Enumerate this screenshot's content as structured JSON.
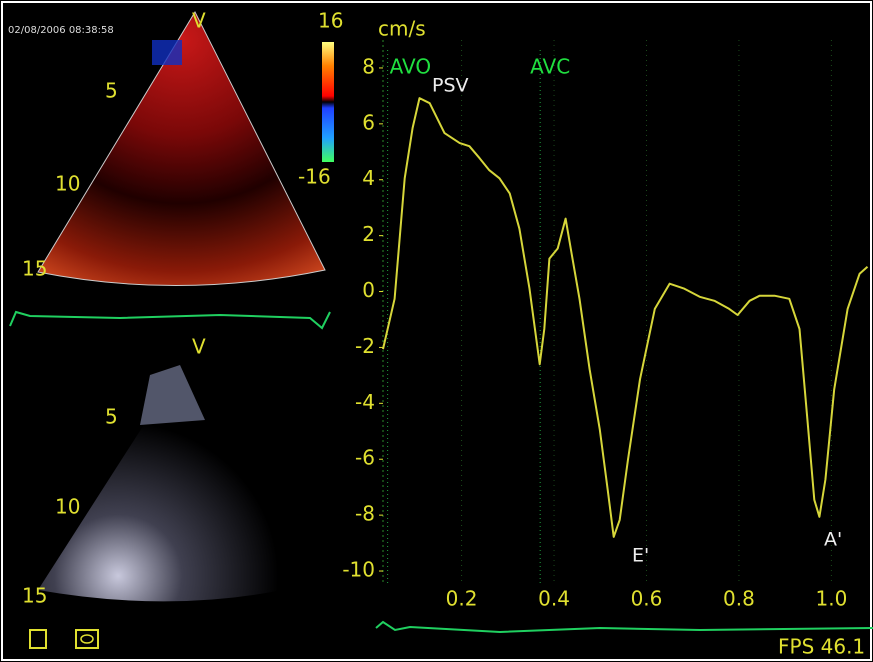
{
  "top_image": {
    "timestamp": "02/08/2006 08:38:58",
    "view_label": "V",
    "depth_labels": [
      "5",
      "10",
      "15"
    ]
  },
  "color_scale": {
    "max": 16,
    "min": -16
  },
  "bottom_image": {
    "view_label": "V",
    "depth_labels": [
      "5",
      "10",
      "15"
    ]
  },
  "fps": "FPS 46.1",
  "chart_data": {
    "type": "line",
    "y_label": "cm/s",
    "color": "#d6d63a",
    "grid": true,
    "x": [
      0.03,
      0.055,
      0.077,
      0.094,
      0.109,
      0.131,
      0.163,
      0.196,
      0.217,
      0.239,
      0.26,
      0.282,
      0.304,
      0.325,
      0.347,
      0.369,
      0.379,
      0.39,
      0.408,
      0.425,
      0.438,
      0.455,
      0.477,
      0.499,
      0.516,
      0.529,
      0.542,
      0.56,
      0.586,
      0.618,
      0.65,
      0.682,
      0.715,
      0.747,
      0.779,
      0.797,
      0.823,
      0.845,
      0.877,
      0.909,
      0.931,
      0.948,
      0.963,
      0.974,
      0.987,
      1.006,
      1.035,
      1.061,
      1.078
    ],
    "values": [
      -2.06,
      -0.26,
      4.05,
      5.85,
      6.92,
      6.74,
      5.67,
      5.31,
      5.2,
      4.77,
      4.34,
      4.05,
      3.51,
      2.25,
      0.1,
      -2.6,
      -1.34,
      1.18,
      1.54,
      2.61,
      1.36,
      -0.26,
      -2.78,
      -4.94,
      -7.09,
      -8.78,
      -8.17,
      -6.01,
      -3.14,
      -0.62,
      0.28,
      0.1,
      -0.19,
      -0.33,
      -0.62,
      -0.84,
      -0.33,
      -0.15,
      -0.15,
      -0.26,
      -1.34,
      -4.58,
      -7.45,
      -8.06,
      -6.73,
      -3.5,
      -0.62,
      0.64,
      0.89
    ],
    "xlim": [
      0.03,
      1.09
    ],
    "ylim": [
      -10.5,
      9
    ],
    "xticks": [
      0.2,
      0.4,
      0.6,
      0.8,
      {
        "value": 1,
        "label": "1.0"
      }
    ],
    "yticks": [
      -10,
      -8,
      -6,
      -4,
      -2,
      0,
      2,
      4,
      6,
      8
    ],
    "events": [
      {
        "label": "AVO",
        "x": 0.04
      },
      {
        "label": "AVC",
        "x": 0.37
      }
    ],
    "annotations": [
      "PSV",
      "E'",
      "A'"
    ]
  }
}
